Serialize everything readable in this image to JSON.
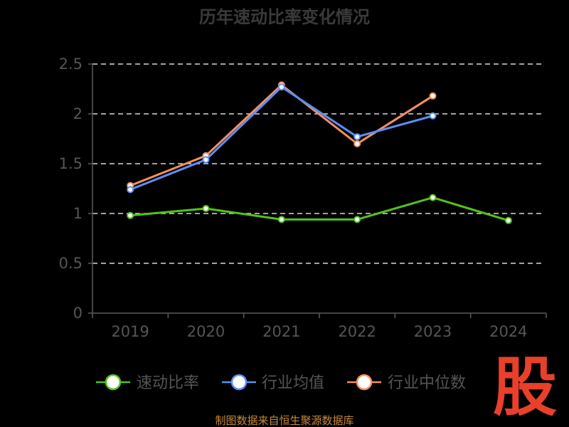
{
  "chart_data": {
    "type": "line",
    "title": "历年速动比率变化情况",
    "categories": [
      "2019",
      "2020",
      "2021",
      "2022",
      "2023",
      "2024"
    ],
    "ylim": [
      0,
      2.5
    ],
    "yticks": [
      "0",
      "0.5",
      "1",
      "1.5",
      "2",
      "2.5"
    ],
    "grid": true,
    "legend_position": "bottom",
    "series": [
      {
        "name": "速动比率",
        "color": "#52c41a",
        "values": [
          0.98,
          1.05,
          0.94,
          0.94,
          1.16,
          0.93
        ]
      },
      {
        "name": "行业均值",
        "color": "#5b8ff9",
        "values": [
          1.24,
          1.54,
          2.27,
          1.77,
          1.98,
          null
        ]
      },
      {
        "name": "行业中位数",
        "color": "#f6905f",
        "values": [
          1.28,
          1.58,
          2.29,
          1.7,
          2.18,
          null
        ]
      }
    ]
  },
  "source_text": "制图数据来自恒生聚源数据库",
  "watermark_text": "股"
}
